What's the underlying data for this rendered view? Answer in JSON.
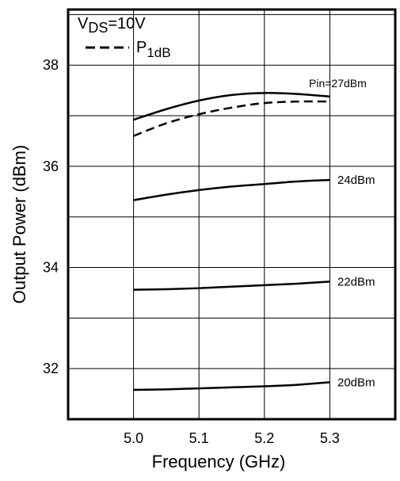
{
  "chart_data": {
    "type": "line",
    "xlabel": "Frequency (GHz)",
    "ylabel": "Output Power (dBm)",
    "xlim": [
      4.9,
      5.4
    ],
    "ylim": [
      31,
      39.1
    ],
    "x_ticks": [
      5.0,
      5.1,
      5.2,
      5.3
    ],
    "x_tick_labels": [
      "5.0",
      "5.1",
      "5.2",
      "5.3"
    ],
    "y_ticks": [
      32,
      34,
      36,
      38
    ],
    "y_tick_labels": [
      "32",
      "34",
      "36",
      "38"
    ],
    "grid": true,
    "legend": {
      "position": "top-left",
      "condition_prefix": "V",
      "condition_subscript": "DS",
      "condition_suffix": "=10V",
      "dashed_entry_prefix": "P",
      "dashed_entry_subscript": "1dB"
    },
    "series": [
      {
        "label": "Pin=27dBm",
        "style": "solid",
        "x": [
          5.0,
          5.05,
          5.1,
          5.15,
          5.2,
          5.25,
          5.3
        ],
        "y": [
          36.92,
          37.13,
          37.3,
          37.41,
          37.45,
          37.43,
          37.38
        ]
      },
      {
        "label": "",
        "style": "dashed",
        "x": [
          5.0,
          5.05,
          5.1,
          5.15,
          5.2,
          5.25,
          5.3
        ],
        "y": [
          36.6,
          36.85,
          37.03,
          37.16,
          37.25,
          37.28,
          37.28
        ]
      },
      {
        "label": "24dBm",
        "style": "solid",
        "x": [
          5.0,
          5.05,
          5.1,
          5.15,
          5.2,
          5.25,
          5.3
        ],
        "y": [
          35.33,
          35.44,
          35.53,
          35.6,
          35.65,
          35.7,
          35.73
        ]
      },
      {
        "label": "22dBm",
        "style": "solid",
        "x": [
          5.0,
          5.05,
          5.1,
          5.15,
          5.2,
          5.25,
          5.3
        ],
        "y": [
          33.56,
          33.57,
          33.59,
          33.62,
          33.65,
          33.68,
          33.72
        ]
      },
      {
        "label": "20dBm",
        "style": "solid",
        "x": [
          5.0,
          5.05,
          5.1,
          5.15,
          5.2,
          5.25,
          5.3
        ],
        "y": [
          31.58,
          31.59,
          31.61,
          31.63,
          31.65,
          31.68,
          31.73
        ]
      }
    ]
  }
}
